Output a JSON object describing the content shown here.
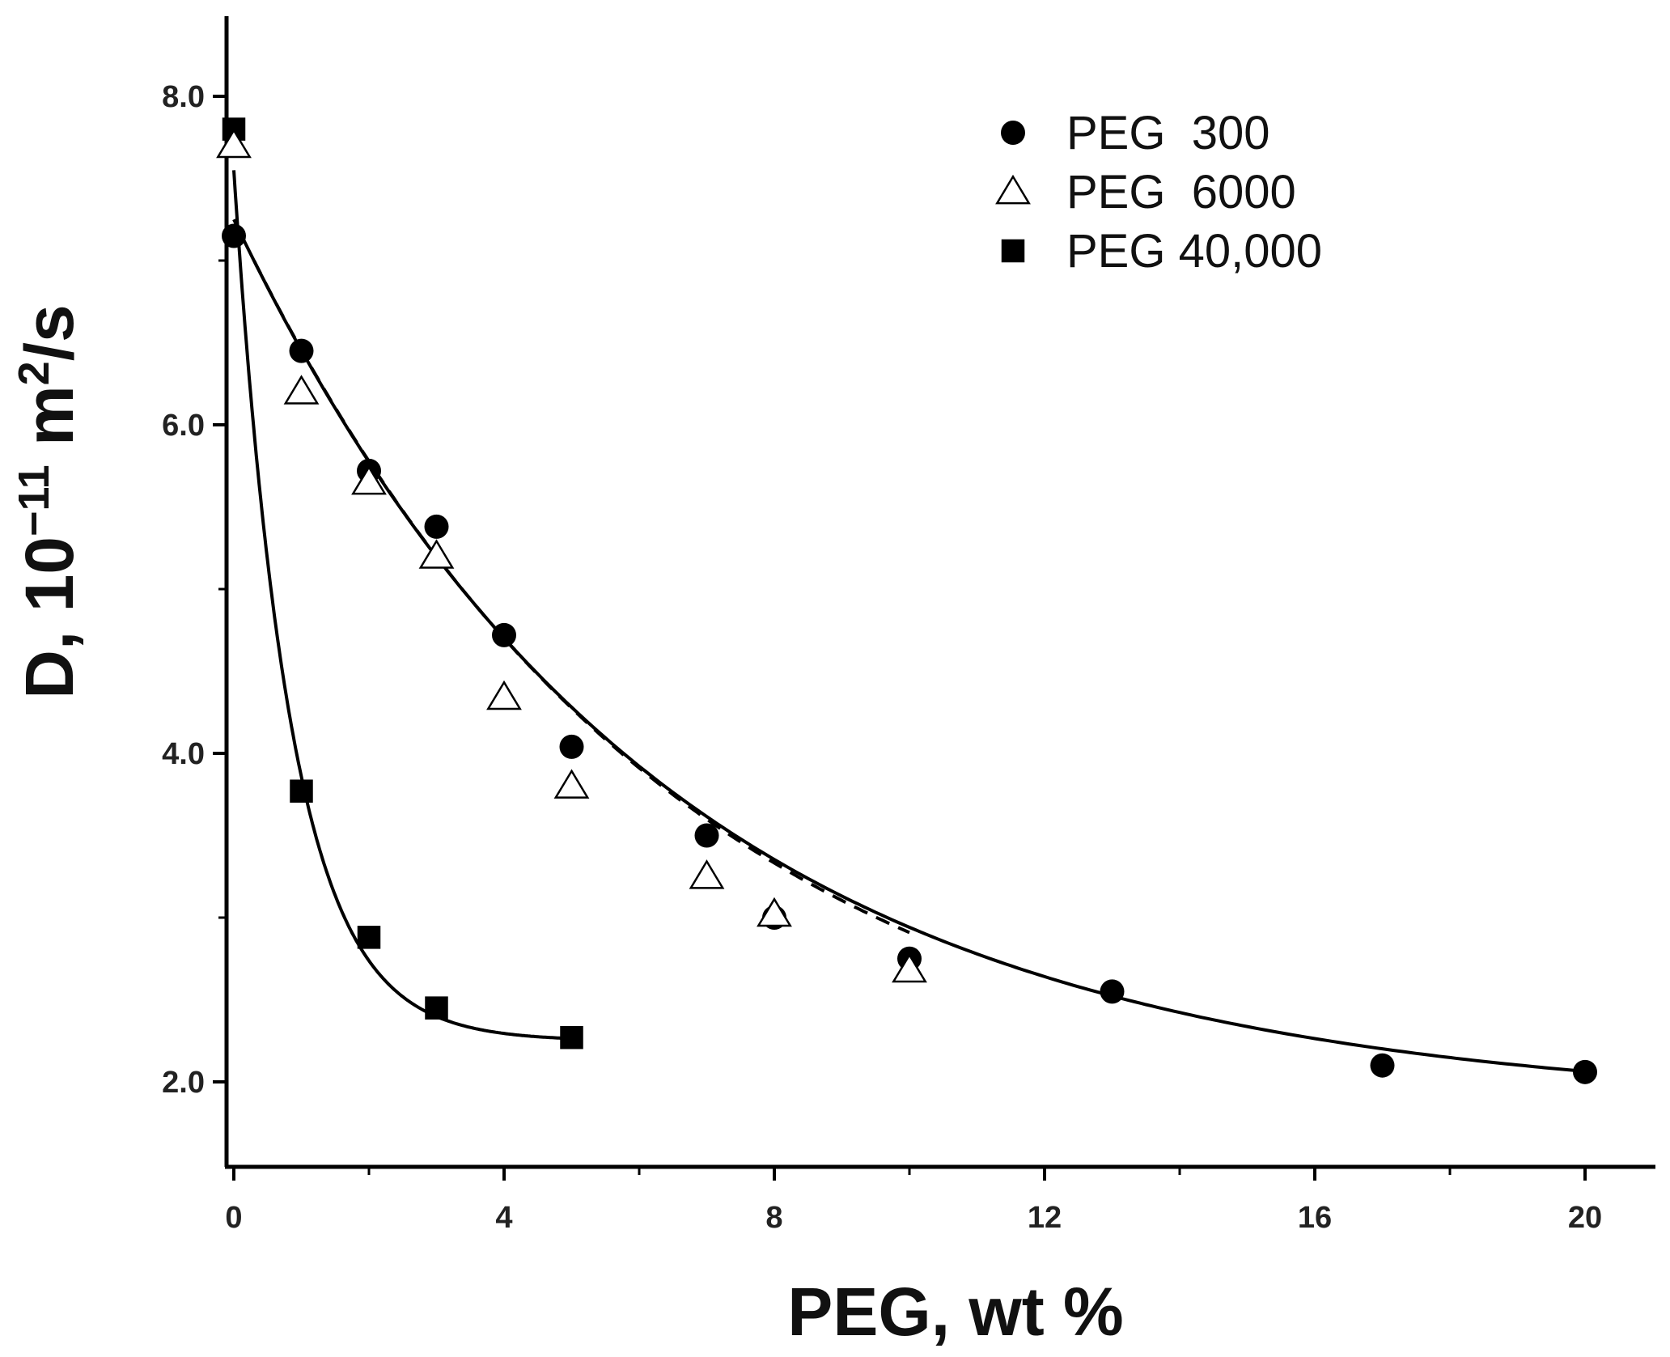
{
  "chart_data": {
    "type": "scatter",
    "title": "",
    "xlabel": "PEG, wt %",
    "ylabel_parts": {
      "prefix": "D, 10",
      "exponent1": "−11",
      "middle": " m",
      "exponent2": "2",
      "suffix": "/s"
    },
    "xlim": [
      -0.2,
      20.9
    ],
    "ylim": [
      1.5,
      8.55
    ],
    "x_ticks": [
      0,
      4,
      8,
      12,
      16,
      20
    ],
    "x_tick_labels": [
      "0",
      "4",
      "8",
      "12",
      "16",
      "20"
    ],
    "x_minor_ticks": [
      2,
      6,
      10,
      14,
      18
    ],
    "y_ticks": [
      2,
      4,
      6,
      8
    ],
    "y_tick_labels": [
      "2.0",
      "4.0",
      "6.0",
      "8.0"
    ],
    "y_minor_ticks": [
      3,
      5,
      7
    ],
    "legend_position": "top-right",
    "series": [
      {
        "name": "PEG  300",
        "marker": "circle-filled",
        "points": [
          [
            0,
            7.15
          ],
          [
            1,
            6.45
          ],
          [
            2,
            5.72
          ],
          [
            3,
            5.38
          ],
          [
            4,
            4.72
          ],
          [
            5,
            4.04
          ],
          [
            7,
            3.5
          ],
          [
            8,
            3.0
          ],
          [
            10,
            2.75
          ],
          [
            13,
            2.55
          ],
          [
            17,
            2.1
          ],
          [
            20,
            2.06
          ]
        ],
        "fit": {
          "style": "solid",
          "a": 1.84,
          "b": 5.41,
          "k": 0.1592,
          "x_range": [
            0,
            20
          ]
        }
      },
      {
        "name": "PEG  6000",
        "marker": "triangle-open",
        "points": [
          [
            0,
            7.7
          ],
          [
            1,
            6.2
          ],
          [
            2,
            5.65
          ],
          [
            3,
            5.2
          ],
          [
            4,
            4.34
          ],
          [
            5,
            3.8
          ],
          [
            7,
            3.25
          ],
          [
            8,
            3.02
          ],
          [
            10,
            2.68
          ]
        ],
        "fit": {
          "style": "dashed",
          "a": 1.75,
          "b": 5.5,
          "k": 0.1557,
          "x_range": [
            0.3,
            10
          ]
        }
      },
      {
        "name": "PEG 40,000",
        "marker": "square-filled",
        "points": [
          [
            0,
            7.8
          ],
          [
            1,
            3.77
          ],
          [
            2,
            2.88
          ],
          [
            3,
            2.45
          ],
          [
            5,
            2.27
          ]
        ],
        "fit": {
          "style": "solid",
          "a": 2.25,
          "b": 5.3,
          "k": 1.193,
          "x_range": [
            0,
            5
          ]
        }
      }
    ]
  }
}
